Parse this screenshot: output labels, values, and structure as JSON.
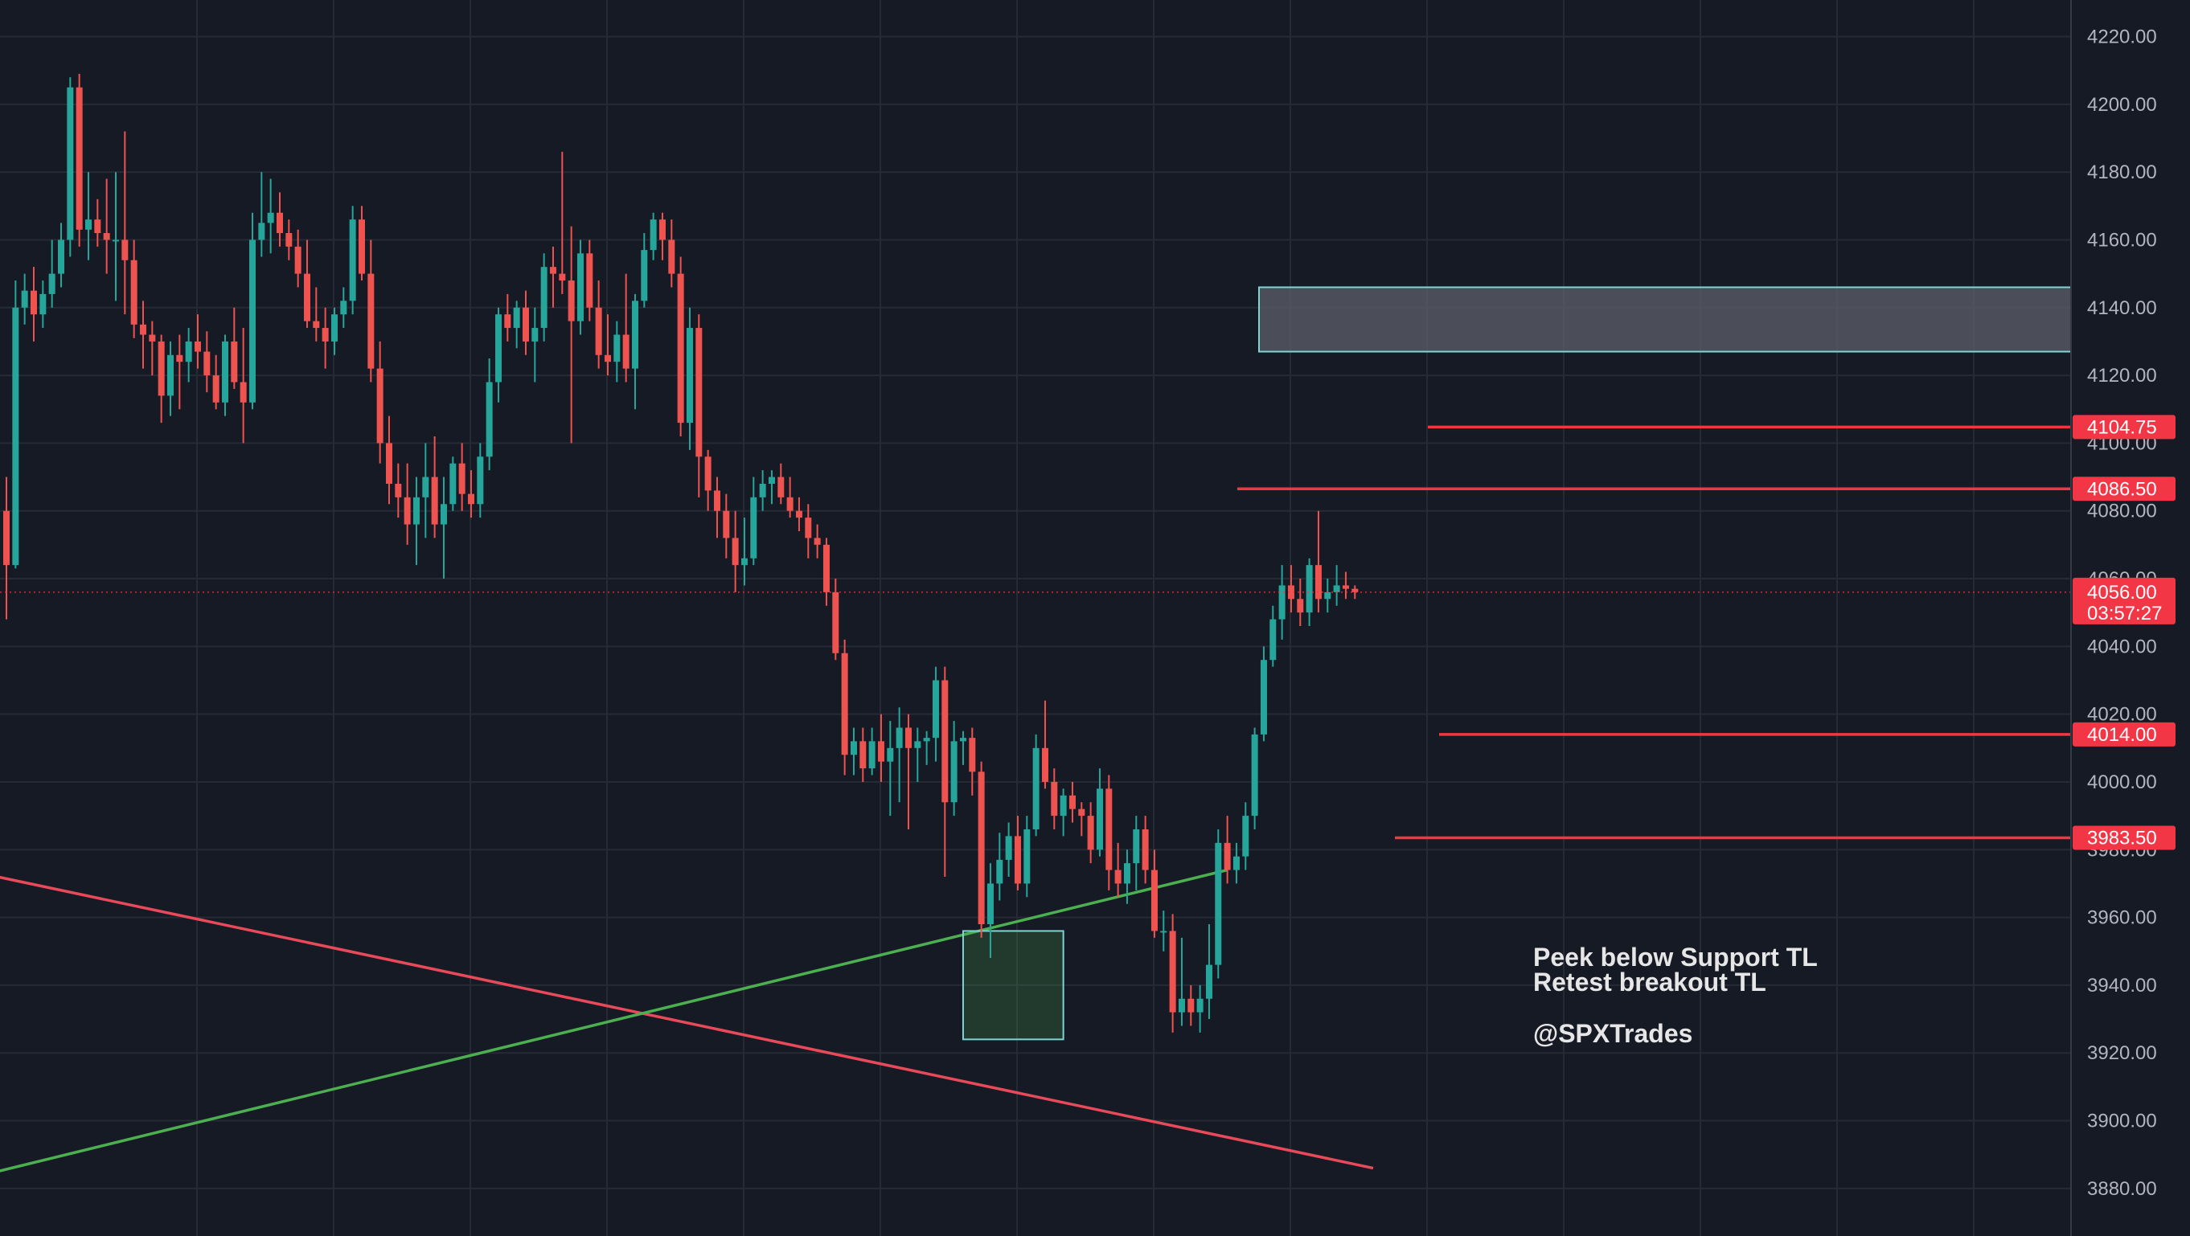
{
  "chart_data": {
    "type": "candlestick",
    "title": "",
    "xlabel": "",
    "ylabel": "",
    "ylim": [
      3871,
      4230
    ],
    "grid": true,
    "y_ticks": [
      "4220.00",
      "4200.00",
      "4180.00",
      "4160.00",
      "4140.00",
      "4120.00",
      "4100.00",
      "4080.00",
      "4060.00",
      "4040.00",
      "4020.00",
      "4000.00",
      "3980.00",
      "3960.00",
      "3940.00",
      "3920.00",
      "3900.00",
      "3880.00"
    ],
    "current_price": {
      "label": "4056.00",
      "countdown": "03:57:27",
      "value": 4056.0
    },
    "resistance_zone": {
      "low": 4127,
      "high": 4146
    },
    "levels": [
      {
        "label": "4104.75",
        "value": 4104.75
      },
      {
        "label": "4086.50",
        "value": 4086.5
      },
      {
        "label": "4014.00",
        "value": 4014.0
      },
      {
        "label": "3983.50",
        "value": 3983.5
      }
    ],
    "trendlines": [
      {
        "name": "",
        "color": "#e84a5a",
        "from": {
          "bar": -1,
          "price": 3972
        },
        "to": {
          "bar": 150,
          "price": 3886
        }
      },
      {
        "name": "",
        "color": "#4caf50",
        "from": {
          "bar": -1,
          "price": 3885
        },
        "to": {
          "bar": 134,
          "price": 3974
        }
      }
    ],
    "support_box": {
      "bar_start": 105,
      "bar_end": 116,
      "low": 3924,
      "high": 3956
    },
    "annotation": {
      "lines": [
        "Peek below Support TL",
        "Retest breakout TL",
        "",
        "@SPXTrades"
      ]
    },
    "colors": {
      "up": "#26a69a",
      "down": "#ef5350",
      "level": "#f23645",
      "support": "#4caf50",
      "zone": "#5d606b"
    },
    "candles": [
      [
        4080,
        4090,
        4048,
        4064
      ],
      [
        4064,
        4148,
        4063,
        4140
      ],
      [
        4140,
        4150,
        4135,
        4145
      ],
      [
        4145,
        4152,
        4130,
        4138
      ],
      [
        4138,
        4148,
        4134,
        4144
      ],
      [
        4144,
        4160,
        4140,
        4150
      ],
      [
        4150,
        4165,
        4146,
        4160
      ],
      [
        4160,
        4208,
        4155,
        4205
      ],
      [
        4205,
        4209,
        4158,
        4163
      ],
      [
        4163,
        4180,
        4154,
        4166
      ],
      [
        4166,
        4172,
        4158,
        4162
      ],
      [
        4162,
        4178,
        4150,
        4160
      ],
      [
        4160,
        4180,
        4142,
        4160
      ],
      [
        4160,
        4192,
        4138,
        4154
      ],
      [
        4154,
        4160,
        4131,
        4135
      ],
      [
        4135,
        4142,
        4122,
        4132
      ],
      [
        4132,
        4136,
        4120,
        4130
      ],
      [
        4130,
        4132,
        4106,
        4114
      ],
      [
        4114,
        4130,
        4108,
        4126
      ],
      [
        4126,
        4132,
        4110,
        4124
      ],
      [
        4124,
        4134,
        4118,
        4130
      ],
      [
        4130,
        4138,
        4122,
        4127
      ],
      [
        4127,
        4133,
        4115,
        4120
      ],
      [
        4120,
        4126,
        4110,
        4112
      ],
      [
        4112,
        4132,
        4108,
        4130
      ],
      [
        4130,
        4140,
        4116,
        4118
      ],
      [
        4118,
        4134,
        4100,
        4112
      ],
      [
        4112,
        4168,
        4110,
        4160
      ],
      [
        4160,
        4180,
        4155,
        4165
      ],
      [
        4165,
        4178,
        4156,
        4168
      ],
      [
        4168,
        4174,
        4158,
        4162
      ],
      [
        4162,
        4166,
        4154,
        4158
      ],
      [
        4158,
        4163,
        4146,
        4150
      ],
      [
        4150,
        4160,
        4134,
        4136
      ],
      [
        4136,
        4146,
        4130,
        4134
      ],
      [
        4134,
        4140,
        4122,
        4130
      ],
      [
        4130,
        4140,
        4126,
        4138
      ],
      [
        4138,
        4146,
        4134,
        4142
      ],
      [
        4142,
        4170,
        4138,
        4166
      ],
      [
        4166,
        4170,
        4148,
        4150
      ],
      [
        4150,
        4160,
        4118,
        4122
      ],
      [
        4122,
        4130,
        4094,
        4100
      ],
      [
        4100,
        4108,
        4082,
        4088
      ],
      [
        4088,
        4094,
        4078,
        4084
      ],
      [
        4084,
        4094,
        4070,
        4076
      ],
      [
        4076,
        4090,
        4064,
        4084
      ],
      [
        4084,
        4100,
        4072,
        4090
      ],
      [
        4090,
        4102,
        4072,
        4076
      ],
      [
        4076,
        4090,
        4060,
        4082
      ],
      [
        4082,
        4096,
        4080,
        4094
      ],
      [
        4094,
        4100,
        4080,
        4085
      ],
      [
        4085,
        4092,
        4078,
        4082
      ],
      [
        4082,
        4100,
        4078,
        4096
      ],
      [
        4096,
        4125,
        4092,
        4118
      ],
      [
        4118,
        4140,
        4112,
        4138
      ],
      [
        4138,
        4144,
        4130,
        4134
      ],
      [
        4134,
        4142,
        4128,
        4140
      ],
      [
        4140,
        4145,
        4126,
        4130
      ],
      [
        4130,
        4140,
        4118,
        4134
      ],
      [
        4134,
        4156,
        4130,
        4152
      ],
      [
        4152,
        4158,
        4140,
        4150
      ],
      [
        4150,
        4186,
        4144,
        4148
      ],
      [
        4148,
        4164,
        4100,
        4136
      ],
      [
        4136,
        4160,
        4132,
        4156
      ],
      [
        4156,
        4160,
        4136,
        4140
      ],
      [
        4140,
        4148,
        4122,
        4126
      ],
      [
        4126,
        4138,
        4120,
        4124
      ],
      [
        4124,
        4136,
        4118,
        4132
      ],
      [
        4132,
        4150,
        4118,
        4122
      ],
      [
        4122,
        4144,
        4110,
        4142
      ],
      [
        4142,
        4162,
        4140,
        4157
      ],
      [
        4157,
        4168,
        4154,
        4166
      ],
      [
        4166,
        4168,
        4154,
        4160
      ],
      [
        4160,
        4166,
        4146,
        4150
      ],
      [
        4150,
        4155,
        4102,
        4106
      ],
      [
        4106,
        4140,
        4098,
        4134
      ],
      [
        4134,
        4138,
        4084,
        4096
      ],
      [
        4096,
        4098,
        4080,
        4086
      ],
      [
        4086,
        4090,
        4072,
        4080
      ],
      [
        4080,
        4085,
        4066,
        4072
      ],
      [
        4072,
        4080,
        4056,
        4064
      ],
      [
        4064,
        4078,
        4058,
        4066
      ],
      [
        4066,
        4090,
        4064,
        4084
      ],
      [
        4084,
        4092,
        4080,
        4088
      ],
      [
        4088,
        4092,
        4082,
        4090
      ],
      [
        4090,
        4094,
        4082,
        4084
      ],
      [
        4084,
        4090,
        4078,
        4080
      ],
      [
        4080,
        4084,
        4074,
        4078
      ],
      [
        4078,
        4082,
        4066,
        4072
      ],
      [
        4072,
        4076,
        4066,
        4070
      ],
      [
        4070,
        4072,
        4052,
        4056
      ],
      [
        4056,
        4060,
        4036,
        4038
      ],
      [
        4038,
        4042,
        4002,
        4008
      ],
      [
        4008,
        4016,
        4002,
        4012
      ],
      [
        4012,
        4016,
        4000,
        4004
      ],
      [
        4004,
        4016,
        4002,
        4012
      ],
      [
        4012,
        4020,
        4000,
        4006
      ],
      [
        4006,
        4018,
        3990,
        4010
      ],
      [
        4010,
        4022,
        3994,
        4016
      ],
      [
        4016,
        4020,
        3986,
        4010
      ],
      [
        4010,
        4016,
        4000,
        4012
      ],
      [
        4012,
        4015,
        4005,
        4013
      ],
      [
        4013,
        4034,
        4006,
        4030
      ],
      [
        4030,
        4034,
        3972,
        3994
      ],
      [
        3994,
        4018,
        3990,
        4012
      ],
      [
        4012,
        4015,
        4005,
        4013
      ],
      [
        4013,
        4016,
        3996,
        4003
      ],
      [
        4003,
        4006,
        3954,
        3958
      ],
      [
        3958,
        3976,
        3948,
        3970
      ],
      [
        3970,
        3985,
        3965,
        3977
      ],
      [
        3977,
        3988,
        3972,
        3984
      ],
      [
        3984,
        3990,
        3968,
        3970
      ],
      [
        3970,
        3990,
        3966,
        3986
      ],
      [
        3986,
        4014,
        3984,
        4010
      ],
      [
        4010,
        4024,
        3998,
        4000
      ],
      [
        4000,
        4004,
        3986,
        3990
      ],
      [
        3990,
        3998,
        3984,
        3996
      ],
      [
        3996,
        4000,
        3988,
        3992
      ],
      [
        3992,
        3994,
        3984,
        3990
      ],
      [
        3990,
        3994,
        3976,
        3980
      ],
      [
        3980,
        4004,
        3978,
        3998
      ],
      [
        3998,
        4002,
        3968,
        3974
      ],
      [
        3974,
        3982,
        3966,
        3970
      ],
      [
        3970,
        3980,
        3964,
        3976
      ],
      [
        3976,
        3990,
        3968,
        3986
      ],
      [
        3986,
        3990,
        3970,
        3974
      ],
      [
        3974,
        3980,
        3954,
        3956
      ],
      [
        3956,
        3962,
        3950,
        3956
      ],
      [
        3956,
        3961,
        3926,
        3932
      ],
      [
        3932,
        3954,
        3928,
        3936
      ],
      [
        3936,
        3940,
        3928,
        3932
      ],
      [
        3932,
        3940,
        3926,
        3936
      ],
      [
        3936,
        3958,
        3930,
        3946
      ],
      [
        3946,
        3986,
        3942,
        3982
      ],
      [
        3982,
        3990,
        3970,
        3974
      ],
      [
        3974,
        3982,
        3970,
        3978
      ],
      [
        3978,
        3994,
        3974,
        3990
      ],
      [
        3990,
        4016,
        3986,
        4014
      ],
      [
        4014,
        4040,
        4012,
        4036
      ],
      [
        4036,
        4052,
        4034,
        4048
      ],
      [
        4048,
        4064,
        4042,
        4058
      ],
      [
        4058,
        4064,
        4050,
        4054
      ],
      [
        4054,
        4060,
        4046,
        4050
      ],
      [
        4050,
        4066,
        4046,
        4064
      ],
      [
        4064,
        4080,
        4050,
        4054
      ],
      [
        4054,
        4060,
        4050,
        4056
      ],
      [
        4056,
        4064,
        4052,
        4058
      ],
      [
        4058,
        4062,
        4054,
        4057
      ],
      [
        4057,
        4058,
        4054,
        4056
      ]
    ]
  }
}
